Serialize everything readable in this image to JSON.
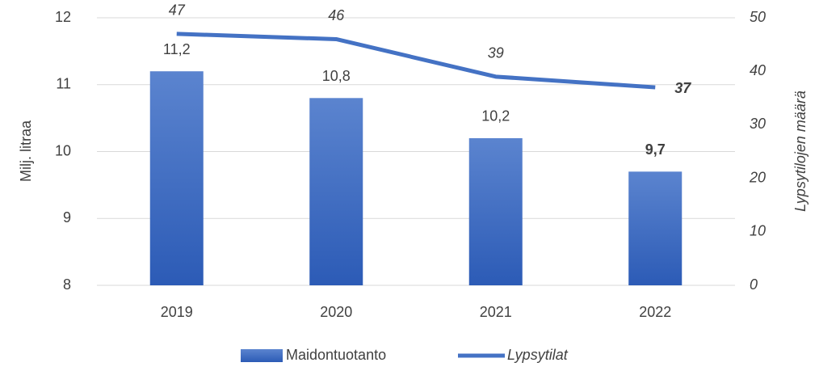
{
  "chart_data": {
    "type": "combo",
    "categories": [
      "2019",
      "2020",
      "2021",
      "2022"
    ],
    "series": [
      {
        "name": "Maidontuotanto",
        "type": "bar",
        "color": "#4472c4",
        "values": [
          11.2,
          10.8,
          10.2,
          9.7
        ],
        "value_labels": [
          "11,2",
          "10,8",
          "10,2",
          "9,7"
        ]
      },
      {
        "name": "Lypsytilat",
        "type": "line",
        "axis": "y2",
        "color": "#4472c4",
        "values": [
          47,
          46,
          39,
          37
        ]
      }
    ],
    "ylabel": "Milj. litraa",
    "y2label": "Lypsytilojen määrä",
    "ylim": [
      8,
      12
    ],
    "yticks": [
      8,
      9,
      10,
      11,
      12
    ],
    "y2lim": [
      0,
      50
    ],
    "y2ticks": [
      0,
      10,
      20,
      30,
      40,
      50
    ],
    "grid": true,
    "legend": "bottom"
  }
}
